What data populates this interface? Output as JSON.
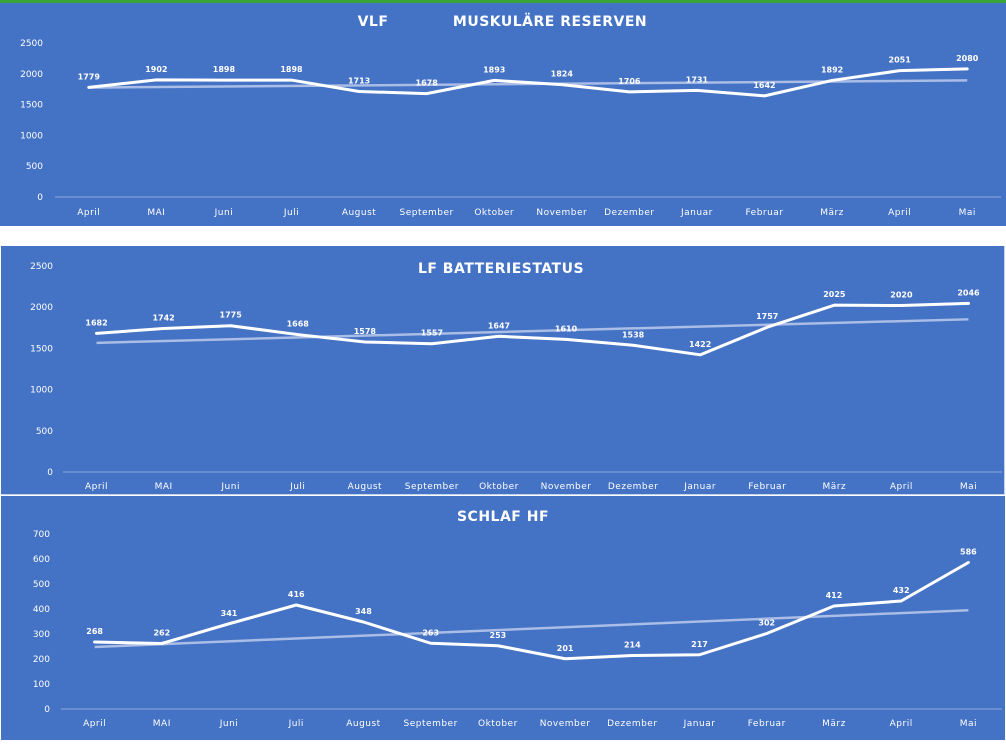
{
  "chart_data": [
    {
      "type": "line",
      "title_left": "VLF",
      "title": "MUSKULÄRE RESERVEN",
      "categories": [
        "April",
        "MAI",
        "Juni",
        "Juli",
        "August",
        "September",
        "Oktober",
        "November",
        "Dezember",
        "Januar",
        "Februar",
        "März",
        "April",
        "Mai"
      ],
      "series": [
        {
          "values": [
            1779,
            1902,
            1898,
            1898,
            1713,
            1678,
            1893,
            1824,
            1706,
            1731,
            1642,
            1892,
            2051,
            2080
          ],
          "color": "#ffffff",
          "data_labels": true
        }
      ],
      "trendline": {
        "values": [
          1776,
          1785,
          1794,
          1803,
          1812,
          1821,
          1830,
          1839,
          1848,
          1857,
          1866,
          1875,
          1884,
          1893
        ],
        "color": "#a9bde6"
      },
      "ylim": [
        0,
        2500
      ],
      "yticks": [
        0,
        500,
        1000,
        1500,
        2000,
        2500
      ],
      "grid": false,
      "legend": "none"
    },
    {
      "type": "line",
      "title": "LF BATTERIESTATUS",
      "categories": [
        "April",
        "MAI",
        "Juni",
        "Juli",
        "August",
        "September",
        "Oktober",
        "November",
        "Dezember",
        "Januar",
        "Februar",
        "März",
        "April",
        "Mai"
      ],
      "series": [
        {
          "values": [
            1682,
            1742,
            1775,
            1668,
            1578,
            1557,
            1647,
            1610,
            1538,
            1422,
            1757,
            2025,
            2020,
            2046
          ],
          "color": "#ffffff",
          "data_labels": true
        }
      ],
      "trendline": {
        "values": [
          1567,
          1589,
          1611,
          1633,
          1655,
          1677,
          1699,
          1721,
          1743,
          1765,
          1787,
          1809,
          1831,
          1853
        ],
        "color": "#a9bde6"
      },
      "ylim": [
        0,
        2500
      ],
      "yticks": [
        0,
        500,
        1000,
        1500,
        2000,
        2500
      ],
      "grid": false,
      "legend": "none"
    },
    {
      "type": "line",
      "title": "SCHLAF HF",
      "categories": [
        "April",
        "MAI",
        "Juni",
        "Juli",
        "August",
        "September",
        "Oktober",
        "November",
        "Dezember",
        "Januar",
        "Februar",
        "März",
        "April",
        "Mai"
      ],
      "series": [
        {
          "values": [
            268,
            262,
            341,
            416,
            348,
            263,
            253,
            201,
            214,
            217,
            302,
            412,
            432,
            586
          ],
          "color": "#ffffff",
          "data_labels": true
        }
      ],
      "trendline": {
        "values": [
          248,
          260,
          271,
          282,
          294,
          305,
          316,
          327,
          339,
          350,
          361,
          373,
          384,
          395
        ],
        "color": "#a9bde6"
      },
      "ylim": [
        0,
        700
      ],
      "yticks": [
        0,
        100,
        200,
        300,
        400,
        500,
        600,
        700
      ],
      "grid": false,
      "legend": "none"
    }
  ]
}
